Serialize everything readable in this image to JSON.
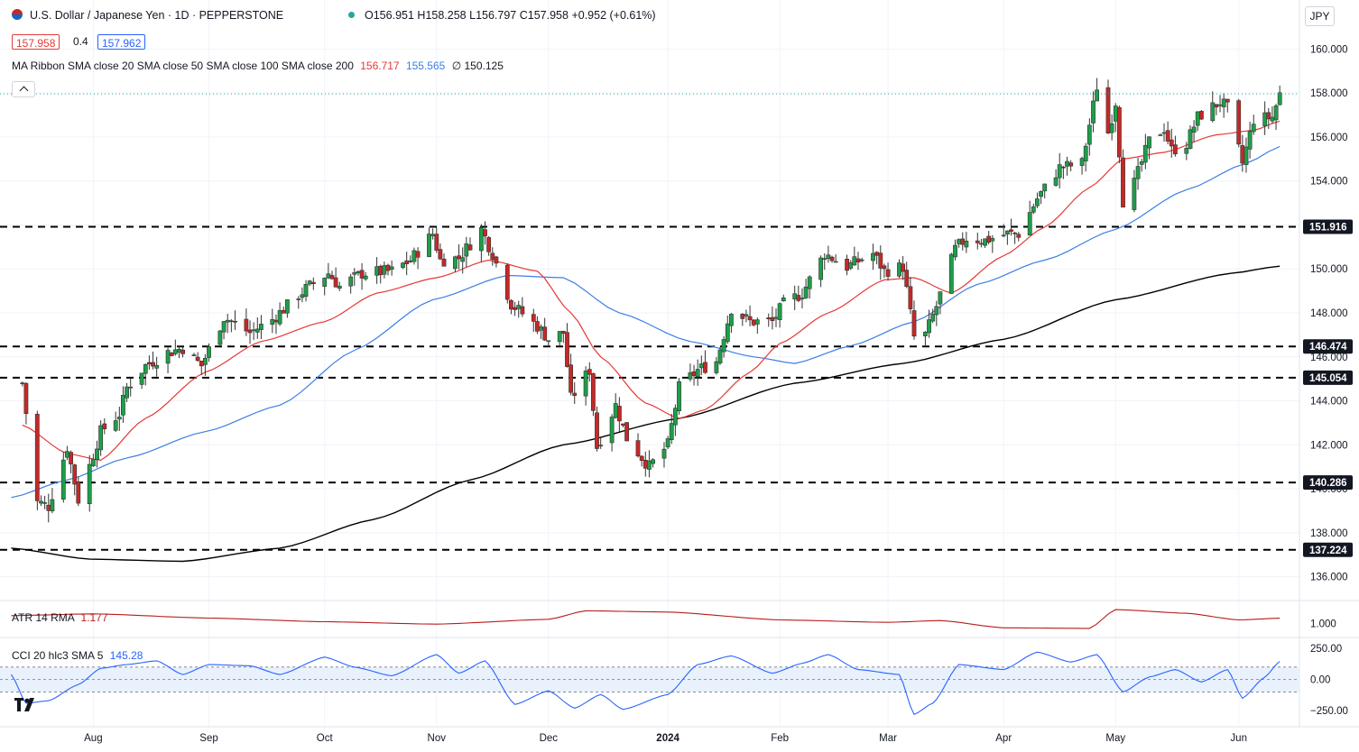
{
  "header": {
    "symbol_title": "U.S. Dollar / Japanese Yen · 1D · PEPPERSTONE",
    "ohlc": {
      "o_label": "O",
      "o": "156.951",
      "h_label": "H",
      "h": "158.258",
      "l_label": "L",
      "l": "156.797",
      "c_label": "C",
      "c": "157.958",
      "change": "+0.952 (+0.61%)"
    },
    "bid": "157.958",
    "spread": "0.4",
    "ask": "157.962",
    "ribbon_label": "MA Ribbon SMA close 20 SMA close 50 SMA close 100 SMA close 200",
    "ribbon_values": {
      "sma20": "156.717",
      "sma50": "155.565",
      "sma100": "∅",
      "sma200": "150.125"
    },
    "currency": "JPY",
    "collapse_icon": "chevron-up-icon"
  },
  "colors": {
    "up": "#26a69a",
    "up_fill": "#1e9e4a",
    "down": "#c62828",
    "sma20": "#e53935",
    "sma50": "#3d7ee6",
    "sma200": "#000000",
    "atr": "#b71c1c",
    "cci": "#2962ff",
    "cci_band": "#e8f1fc"
  },
  "chart_data": [
    {
      "type": "candlestick",
      "title": "U.S. Dollar / Japanese Yen · 1D · PEPPERSTONE",
      "ylim": [
        135.0,
        161.0
      ],
      "y_ticks": [
        "136.000",
        "138.000",
        "140.000",
        "142.000",
        "144.000",
        "146.000",
        "148.000",
        "150.000",
        "152.000",
        "154.000",
        "156.000",
        "158.000",
        "160.000"
      ],
      "x_ticks": [
        "Aug",
        "Sep",
        "Oct",
        "Nov",
        "Dec",
        "2024",
        "Feb",
        "Mar",
        "Apr",
        "May",
        "Jun"
      ],
      "x_tick_dates": [
        "2023-08-01",
        "2023-09-01",
        "2023-10-02",
        "2023-11-01",
        "2023-12-01",
        "2024-01-02",
        "2024-02-01",
        "2024-03-01",
        "2024-04-01",
        "2024-05-01",
        "2024-06-03"
      ],
      "horizontal_levels": [
        151.916,
        146.474,
        145.054,
        140.286,
        137.224
      ],
      "level_labels": [
        "151.916",
        "146.474",
        "145.054",
        "140.286",
        "137.224"
      ],
      "last_close_line": 157.958,
      "price_path_anchors": [
        [
          "2023-07-13",
          144.8
        ],
        [
          "2023-07-17",
          139.4
        ],
        [
          "2023-07-20",
          139.2
        ],
        [
          "2023-07-25",
          141.9
        ],
        [
          "2023-07-28",
          139.5
        ],
        [
          "2023-08-03",
          142.6
        ],
        [
          "2023-08-08",
          143.4
        ],
        [
          "2023-08-10",
          144.6
        ],
        [
          "2023-08-15",
          145.6
        ],
        [
          "2023-08-21",
          146.2
        ],
        [
          "2023-08-25",
          146.4
        ],
        [
          "2023-08-30",
          145.6
        ],
        [
          "2023-09-05",
          147.8
        ],
        [
          "2023-09-12",
          147.1
        ],
        [
          "2023-09-18",
          147.7
        ],
        [
          "2023-09-27",
          149.1
        ],
        [
          "2023-10-03",
          149.8
        ],
        [
          "2023-10-06",
          149.2
        ],
        [
          "2023-10-12",
          149.8
        ],
        [
          "2023-10-20",
          149.9
        ],
        [
          "2023-10-25",
          150.4
        ],
        [
          "2023-10-31",
          151.6
        ],
        [
          "2023-11-02",
          150.4
        ],
        [
          "2023-11-07",
          150.5
        ],
        [
          "2023-11-13",
          151.8
        ],
        [
          "2023-11-16",
          150.7
        ],
        [
          "2023-11-21",
          148.4
        ],
        [
          "2023-11-28",
          147.4
        ],
        [
          "2023-12-01",
          146.8
        ],
        [
          "2023-12-05",
          147.1
        ],
        [
          "2023-12-07",
          144.1
        ],
        [
          "2023-12-12",
          145.4
        ],
        [
          "2023-12-14",
          141.9
        ],
        [
          "2023-12-19",
          143.8
        ],
        [
          "2023-12-22",
          142.3
        ],
        [
          "2023-12-28",
          141.0
        ],
        [
          "2024-01-02",
          142.0
        ],
        [
          "2024-01-05",
          144.6
        ],
        [
          "2024-01-10",
          145.4
        ],
        [
          "2024-01-15",
          145.8
        ],
        [
          "2024-01-19",
          148.2
        ],
        [
          "2024-01-24",
          147.6
        ],
        [
          "2024-01-30",
          147.6
        ],
        [
          "2024-02-02",
          148.4
        ],
        [
          "2024-02-07",
          148.9
        ],
        [
          "2024-02-13",
          150.7
        ],
        [
          "2024-02-19",
          150.1
        ],
        [
          "2024-02-26",
          150.7
        ],
        [
          "2024-02-29",
          149.9
        ],
        [
          "2024-03-05",
          150.1
        ],
        [
          "2024-03-08",
          146.9
        ],
        [
          "2024-03-11",
          147.0
        ],
        [
          "2024-03-14",
          148.3
        ],
        [
          "2024-03-19",
          150.9
        ],
        [
          "2024-03-22",
          151.4
        ],
        [
          "2024-03-27",
          151.3
        ],
        [
          "2024-04-02",
          151.6
        ],
        [
          "2024-04-05",
          151.6
        ],
        [
          "2024-04-10",
          153.2
        ],
        [
          "2024-04-16",
          154.6
        ],
        [
          "2024-04-22",
          154.8
        ],
        [
          "2024-04-26",
          158.3
        ],
        [
          "2024-04-29",
          156.2
        ],
        [
          "2024-05-01",
          157.6
        ],
        [
          "2024-05-03",
          153.1
        ],
        [
          "2024-05-06",
          153.9
        ],
        [
          "2024-05-10",
          155.8
        ],
        [
          "2024-05-14",
          156.4
        ],
        [
          "2024-05-16",
          155.4
        ],
        [
          "2024-05-20",
          155.7
        ],
        [
          "2024-05-23",
          156.9
        ],
        [
          "2024-05-29",
          157.6
        ],
        [
          "2024-05-31",
          157.3
        ],
        [
          "2024-06-04",
          154.8
        ],
        [
          "2024-06-07",
          156.8
        ],
        [
          "2024-06-12",
          156.9
        ],
        [
          "2024-06-14",
          157.958
        ]
      ],
      "sma20_anchors": [
        [
          "2023-07-13",
          142.9
        ],
        [
          "2023-07-25",
          141.6
        ],
        [
          "2023-08-03",
          141.3
        ],
        [
          "2023-08-15",
          143.2
        ],
        [
          "2023-08-31",
          145.3
        ],
        [
          "2023-09-15",
          146.7
        ],
        [
          "2023-10-02",
          147.6
        ],
        [
          "2023-10-16",
          148.9
        ],
        [
          "2023-11-01",
          149.6
        ],
        [
          "2023-11-15",
          150.4
        ],
        [
          "2023-11-28",
          149.9
        ],
        [
          "2023-12-07",
          148.0
        ],
        [
          "2023-12-15",
          146.0
        ],
        [
          "2023-12-27",
          143.9
        ],
        [
          "2024-01-05",
          143.2
        ],
        [
          "2024-01-12",
          143.6
        ],
        [
          "2024-01-24",
          145.3
        ],
        [
          "2024-02-01",
          146.6
        ],
        [
          "2024-02-14",
          148.0
        ],
        [
          "2024-02-29",
          149.5
        ],
        [
          "2024-03-08",
          149.6
        ],
        [
          "2024-03-18",
          148.9
        ],
        [
          "2024-04-01",
          150.6
        ],
        [
          "2024-04-12",
          151.9
        ],
        [
          "2024-04-24",
          153.7
        ],
        [
          "2024-05-03",
          155.0
        ],
        [
          "2024-05-14",
          155.3
        ],
        [
          "2024-05-28",
          156.1
        ],
        [
          "2024-06-07",
          156.3
        ],
        [
          "2024-06-14",
          156.717
        ]
      ],
      "sma50_anchors": [
        [
          "2023-07-10",
          139.6
        ],
        [
          "2023-07-25",
          140.4
        ],
        [
          "2023-08-10",
          141.4
        ],
        [
          "2023-08-31",
          142.6
        ],
        [
          "2023-09-20",
          143.8
        ],
        [
          "2023-10-10",
          146.3
        ],
        [
          "2023-10-31",
          148.6
        ],
        [
          "2023-11-20",
          149.7
        ],
        [
          "2023-12-05",
          149.6
        ],
        [
          "2023-12-20",
          148.0
        ],
        [
          "2024-01-08",
          146.7
        ],
        [
          "2024-01-25",
          146.0
        ],
        [
          "2024-02-05",
          145.7
        ],
        [
          "2024-02-20",
          146.5
        ],
        [
          "2024-03-08",
          147.6
        ],
        [
          "2024-03-25",
          149.3
        ],
        [
          "2024-04-12",
          150.4
        ],
        [
          "2024-05-01",
          151.8
        ],
        [
          "2024-05-20",
          153.6
        ],
        [
          "2024-06-05",
          154.8
        ],
        [
          "2024-06-14",
          155.565
        ]
      ],
      "sma200_anchors": [
        [
          "2023-07-10",
          137.3
        ],
        [
          "2023-07-31",
          136.8
        ],
        [
          "2023-08-25",
          136.7
        ],
        [
          "2023-09-20",
          137.3
        ],
        [
          "2023-10-15",
          138.6
        ],
        [
          "2023-11-10",
          140.4
        ],
        [
          "2023-12-05",
          142.0
        ],
        [
          "2024-01-05",
          143.2
        ],
        [
          "2024-02-05",
          144.8
        ],
        [
          "2024-03-05",
          145.7
        ],
        [
          "2024-04-01",
          146.8
        ],
        [
          "2024-05-01",
          148.6
        ],
        [
          "2024-06-01",
          149.8
        ],
        [
          "2024-06-14",
          150.125
        ]
      ]
    },
    {
      "type": "line",
      "title": "ATR 14 RMA",
      "value_label": "1.177",
      "y_ticks": [
        "1.000"
      ],
      "ylim": [
        0.6,
        1.7
      ],
      "series": [
        {
          "name": "ATR 14 RMA",
          "values": [
            [
              "2023-07-10",
              1.26
            ],
            [
              "2023-08-01",
              1.32
            ],
            [
              "2023-09-01",
              1.18
            ],
            [
              "2023-10-02",
              1.06
            ],
            [
              "2023-11-01",
              0.98
            ],
            [
              "2023-12-01",
              1.14
            ],
            [
              "2023-12-11",
              1.42
            ],
            [
              "2024-01-02",
              1.38
            ],
            [
              "2024-02-01",
              1.12
            ],
            [
              "2024-03-01",
              1.04
            ],
            [
              "2024-03-15",
              1.1
            ],
            [
              "2024-04-01",
              0.86
            ],
            [
              "2024-04-24",
              0.84
            ],
            [
              "2024-05-01",
              1.46
            ],
            [
              "2024-05-20",
              1.34
            ],
            [
              "2024-06-03",
              1.12
            ],
            [
              "2024-06-14",
              1.177
            ]
          ]
        }
      ]
    },
    {
      "type": "line",
      "title": "CCI 20 hlc3 SMA 5",
      "value_label": "145.28",
      "y_ticks": [
        "250.00",
        "0.00",
        "−250.00"
      ],
      "ylim": [
        -350,
        330
      ],
      "band": [
        -100,
        100
      ],
      "series": [
        {
          "name": "CCI 20 hlc3 SMA 5",
          "values": [
            [
              "2023-07-10",
              40
            ],
            [
              "2023-07-14",
              -190
            ],
            [
              "2023-07-20",
              -170
            ],
            [
              "2023-07-28",
              -40
            ],
            [
              "2023-08-03",
              90
            ],
            [
              "2023-08-10",
              120
            ],
            [
              "2023-08-18",
              150
            ],
            [
              "2023-08-25",
              40
            ],
            [
              "2023-09-01",
              120
            ],
            [
              "2023-09-12",
              110
            ],
            [
              "2023-09-20",
              40
            ],
            [
              "2023-10-02",
              180
            ],
            [
              "2023-10-10",
              100
            ],
            [
              "2023-10-20",
              30
            ],
            [
              "2023-11-01",
              200
            ],
            [
              "2023-11-07",
              50
            ],
            [
              "2023-11-14",
              150
            ],
            [
              "2023-11-22",
              -200
            ],
            [
              "2023-12-01",
              -90
            ],
            [
              "2023-12-08",
              -230
            ],
            [
              "2023-12-15",
              -120
            ],
            [
              "2023-12-21",
              -240
            ],
            [
              "2024-01-02",
              -120
            ],
            [
              "2024-01-10",
              120
            ],
            [
              "2024-01-19",
              190
            ],
            [
              "2024-01-30",
              50
            ],
            [
              "2024-02-07",
              130
            ],
            [
              "2024-02-14",
              200
            ],
            [
              "2024-02-22",
              80
            ],
            [
              "2024-03-04",
              40
            ],
            [
              "2024-03-08",
              -280
            ],
            [
              "2024-03-13",
              -190
            ],
            [
              "2024-03-20",
              120
            ],
            [
              "2024-04-01",
              80
            ],
            [
              "2024-04-10",
              220
            ],
            [
              "2024-04-19",
              140
            ],
            [
              "2024-04-26",
              200
            ],
            [
              "2024-05-03",
              -100
            ],
            [
              "2024-05-10",
              20
            ],
            [
              "2024-05-17",
              80
            ],
            [
              "2024-05-24",
              -20
            ],
            [
              "2024-05-31",
              80
            ],
            [
              "2024-06-04",
              -150
            ],
            [
              "2024-06-10",
              20
            ],
            [
              "2024-06-14",
              145.28
            ]
          ]
        }
      ]
    }
  ]
}
